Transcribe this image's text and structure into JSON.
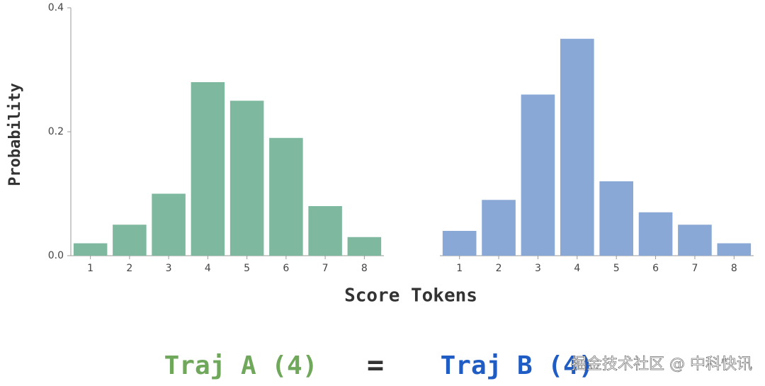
{
  "figure": {
    "ylabel": "Probability",
    "xlabel": "Score Tokens",
    "captions": [
      {
        "text": "Traj A (4)",
        "color": "#6fa85a"
      },
      {
        "text": "=",
        "color": "#333333"
      },
      {
        "text": "Traj B (4)",
        "color": "#1f5cc4"
      }
    ],
    "watermark": "掘金技术社区 @ 中科快讯"
  },
  "chart_data": [
    {
      "type": "bar",
      "categories": [
        "1",
        "2",
        "3",
        "4",
        "5",
        "6",
        "7",
        "8"
      ],
      "values": [
        0.02,
        0.05,
        0.1,
        0.28,
        0.25,
        0.19,
        0.08,
        0.03
      ],
      "color": "#7db89f",
      "ylim": [
        0,
        0.4
      ],
      "yticks": [
        {
          "value": 0,
          "label": "0.0"
        },
        0.2,
        0.4
      ],
      "grid": false
    },
    {
      "type": "bar",
      "categories": [
        "1",
        "2",
        "3",
        "4",
        "5",
        "6",
        "7",
        "8"
      ],
      "values": [
        0.04,
        0.09,
        0.26,
        0.35,
        0.12,
        0.07,
        0.05,
        0.02
      ],
      "color": "#8aa8d6",
      "ylim": [
        0,
        0.4
      ],
      "grid": false
    }
  ]
}
